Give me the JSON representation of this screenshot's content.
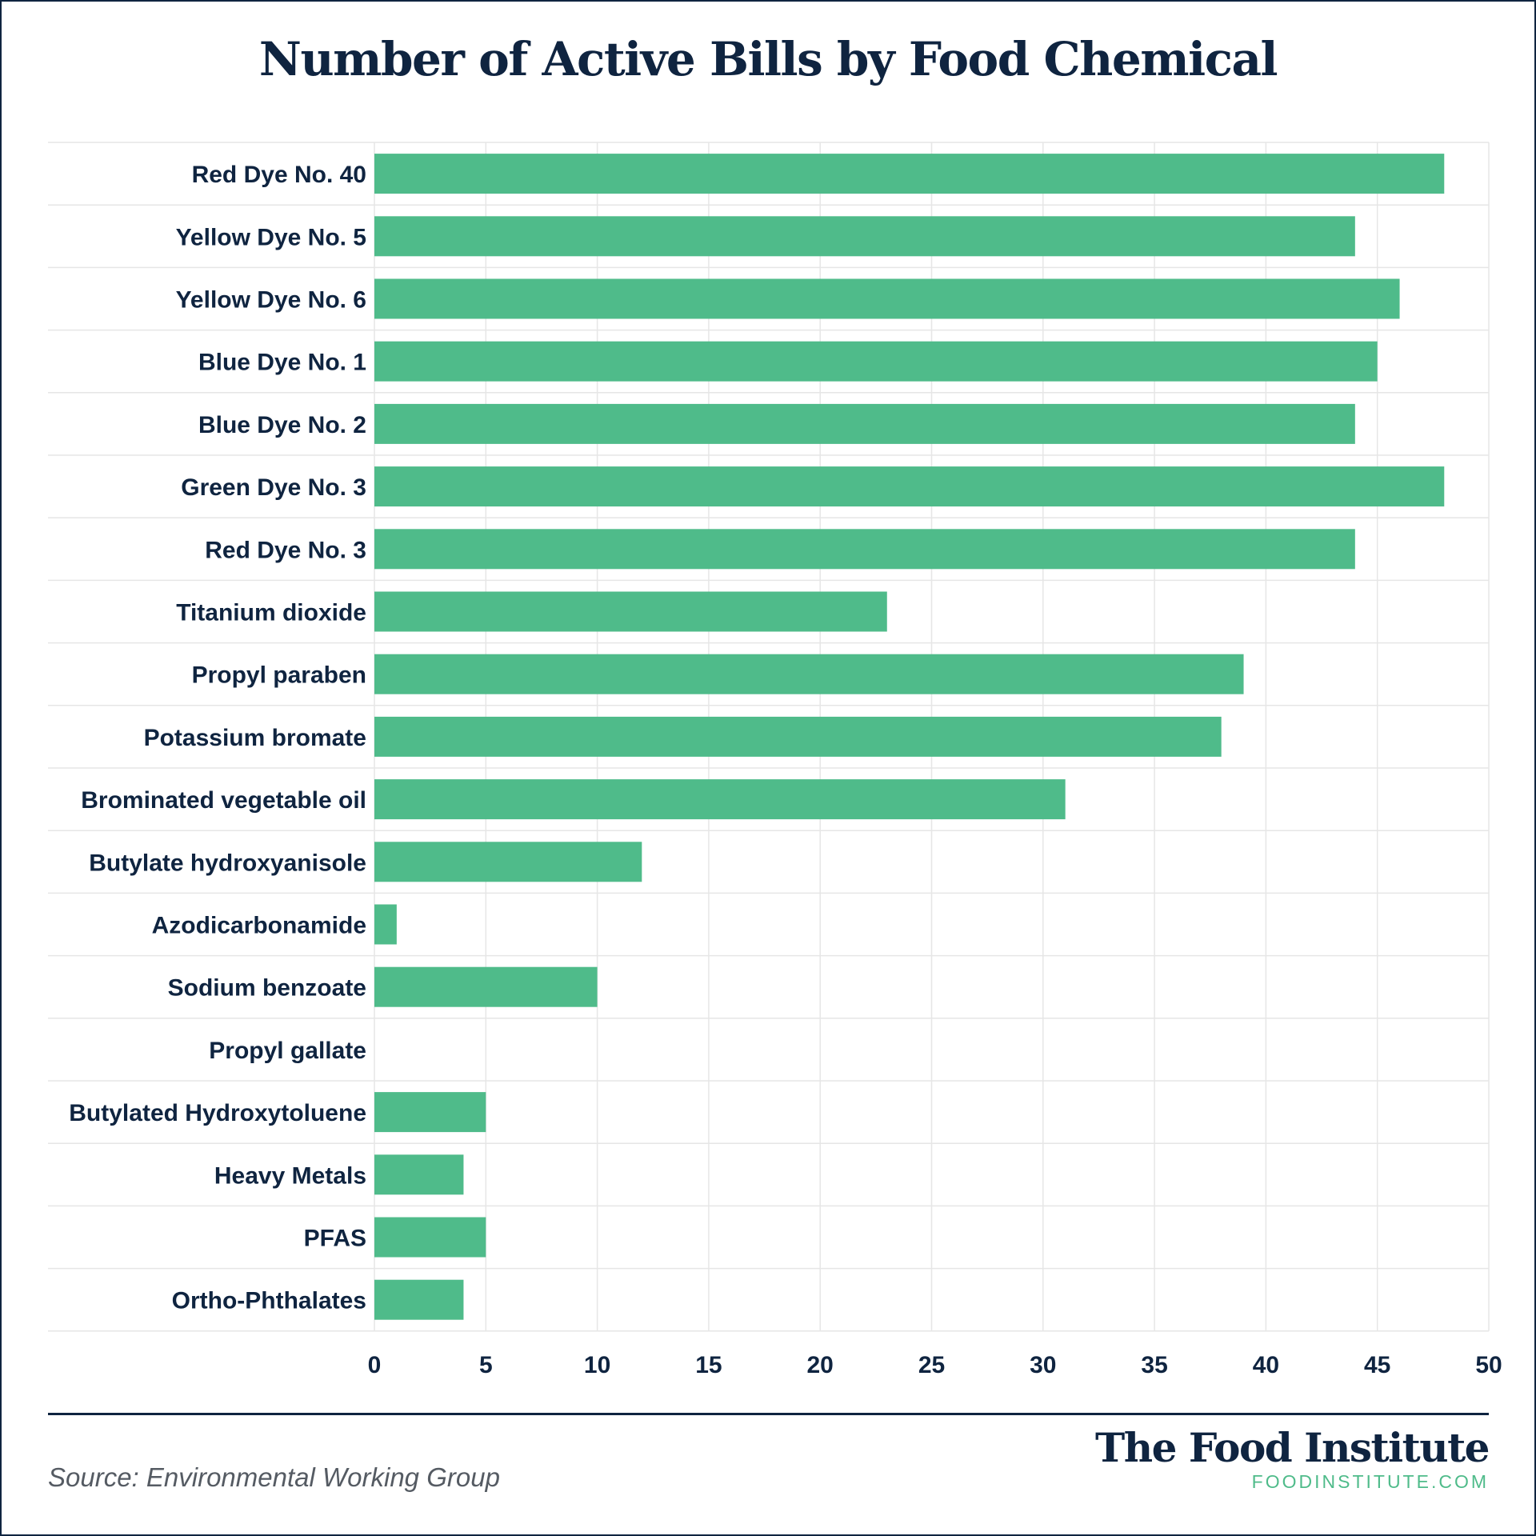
{
  "title": "Number of Active Bills by Food Chemical",
  "footer": {
    "source": "Source: Environmental Working Group",
    "brand_name": "The Food Institute",
    "brand_url": "FOODINSTITUTE.COM"
  },
  "colors": {
    "bar": "#4fbb8a",
    "text": "#0f2440",
    "grid": "#e6e6e6"
  },
  "chart_data": {
    "type": "bar",
    "orientation": "horizontal",
    "categories": [
      "Red Dye No. 40",
      "Yellow Dye No. 5",
      "Yellow Dye No. 6",
      "Blue Dye No. 1",
      "Blue Dye No. 2",
      "Green Dye No. 3",
      "Red Dye No. 3",
      "Titanium dioxide",
      "Propyl paraben",
      "Potassium bromate",
      "Brominated vegetable oil",
      "Butylate hydroxyanisole",
      "Azodicarbonamide",
      "Sodium benzoate",
      "Propyl gallate",
      "Butylated Hydroxytoluene",
      "Heavy Metals",
      "PFAS",
      "Ortho-Phthalates"
    ],
    "values": [
      48,
      44,
      46,
      45,
      44,
      48,
      44,
      23,
      39,
      38,
      31,
      12,
      1,
      10,
      0,
      5,
      4,
      5,
      4
    ],
    "xlim": [
      0,
      50
    ],
    "xticks": [
      0,
      5,
      10,
      15,
      20,
      25,
      30,
      35,
      40,
      45,
      50
    ],
    "grid": true
  }
}
